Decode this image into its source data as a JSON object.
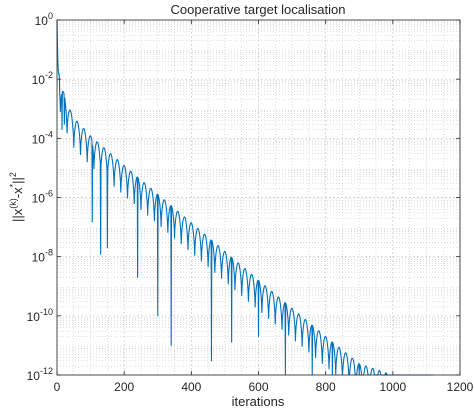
{
  "chart_data": {
    "type": "line",
    "title": "Cooperative target localisation",
    "xlabel": "iterations",
    "ylabel": "||x^(k)-x*||^2",
    "ylabel_parts": {
      "base": "||x",
      "sup1": "(k)",
      "mid": "-x",
      "sup2": "*",
      "tail": "||",
      "sup3": "2"
    },
    "xlim": [
      0,
      1200
    ],
    "ylim": [
      1e-12,
      1
    ],
    "yscale": "log",
    "grid": true,
    "minor_grid": true,
    "x_ticks": [
      0,
      200,
      400,
      600,
      800,
      1000,
      1200
    ],
    "x_tick_labels": [
      "0",
      "200",
      "400",
      "600",
      "800",
      "1000",
      "1200"
    ],
    "y_ticks": [
      1e-12,
      1e-10,
      1e-08,
      1e-06,
      0.0001,
      0.01,
      1
    ],
    "y_tick_labels": [
      {
        "base": "10",
        "exp": "-12"
      },
      {
        "base": "10",
        "exp": "-10"
      },
      {
        "base": "10",
        "exp": "-8"
      },
      {
        "base": "10",
        "exp": "-6"
      },
      {
        "base": "10",
        "exp": "-4"
      },
      {
        "base": "10",
        "exp": "-2"
      },
      {
        "base": "10",
        "exp": "0"
      }
    ],
    "series": [
      {
        "color": "#0072BD",
        "description": "oscillating decay, envelope from ~1 at x=0 to ~1e-12 at x~1120, period ~20 iterations",
        "envelope_points": [
          {
            "x": 0,
            "y": 1.0
          },
          {
            "x": 3,
            "y": 0.03
          },
          {
            "x": 10,
            "y": 0.008
          },
          {
            "x": 30,
            "y": 0.0015
          },
          {
            "x": 50,
            "y": 0.0005
          },
          {
            "x": 100,
            "y": 0.00012
          },
          {
            "x": 200,
            "y": 1.2e-05
          },
          {
            "x": 300,
            "y": 1.3e-06
          },
          {
            "x": 400,
            "y": 1.4e-07
          },
          {
            "x": 500,
            "y": 1.5e-08
          },
          {
            "x": 600,
            "y": 1.6e-09
          },
          {
            "x": 700,
            "y": 1.8e-10
          },
          {
            "x": 800,
            "y": 2e-11
          },
          {
            "x": 900,
            "y": 2.4e-12
          },
          {
            "x": 1000,
            "y": 1e-12
          },
          {
            "x": 1120,
            "y": 1e-12
          }
        ],
        "period": 20,
        "trough_depth_decades": 1.0,
        "deep_dips": [
          {
            "x": 15,
            "y": 0.0002
          },
          {
            "x": 22,
            "y": 0.0003
          },
          {
            "x": 105,
            "y": 1.5e-07
          },
          {
            "x": 130,
            "y": 1.2e-08
          },
          {
            "x": 150,
            "y": 2e-08
          },
          {
            "x": 240,
            "y": 2e-09
          },
          {
            "x": 300,
            "y": 1e-10
          },
          {
            "x": 340,
            "y": 1e-11
          },
          {
            "x": 460,
            "y": 3e-12
          },
          {
            "x": 520,
            "y": 1.3e-11
          },
          {
            "x": 600,
            "y": 2e-11
          },
          {
            "x": 680,
            "y": 1e-12
          },
          {
            "x": 760,
            "y": 1e-12
          },
          {
            "x": 820,
            "y": 1e-12
          },
          {
            "x": 900,
            "y": 1e-12
          },
          {
            "x": 980,
            "y": 1e-12
          },
          {
            "x": 1040,
            "y": 1e-12
          }
        ]
      }
    ]
  }
}
